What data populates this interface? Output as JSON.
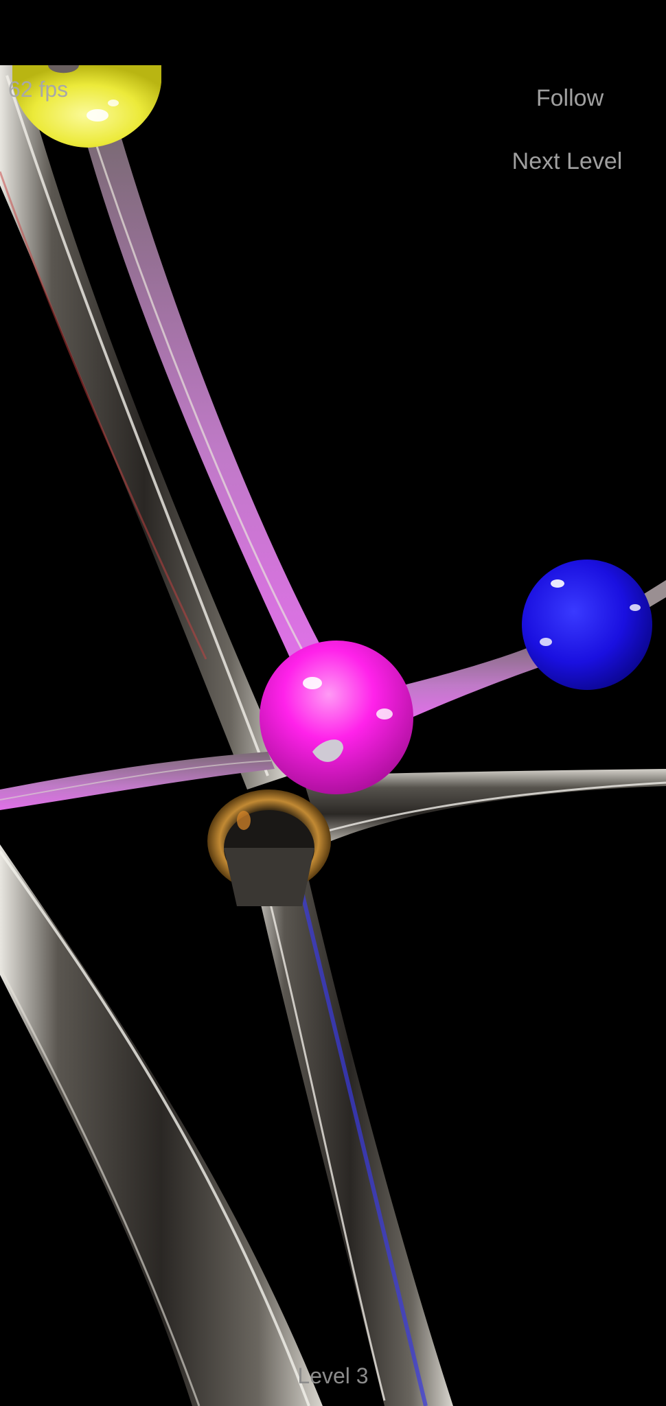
{
  "hud": {
    "fps": "62 fps",
    "follow_label": "Follow",
    "next_level_label": "Next Level",
    "level_label": "Level 3"
  },
  "scene": {
    "background": "#000000",
    "balls": [
      {
        "name": "yellow-ball",
        "color": "#f2ee3a"
      },
      {
        "name": "magenta-ball",
        "color": "#ff1fe6"
      },
      {
        "name": "blue-ball",
        "color": "#1a12e6"
      }
    ],
    "ring_color": "#b07a2a",
    "rod_color": "#4a4742"
  }
}
